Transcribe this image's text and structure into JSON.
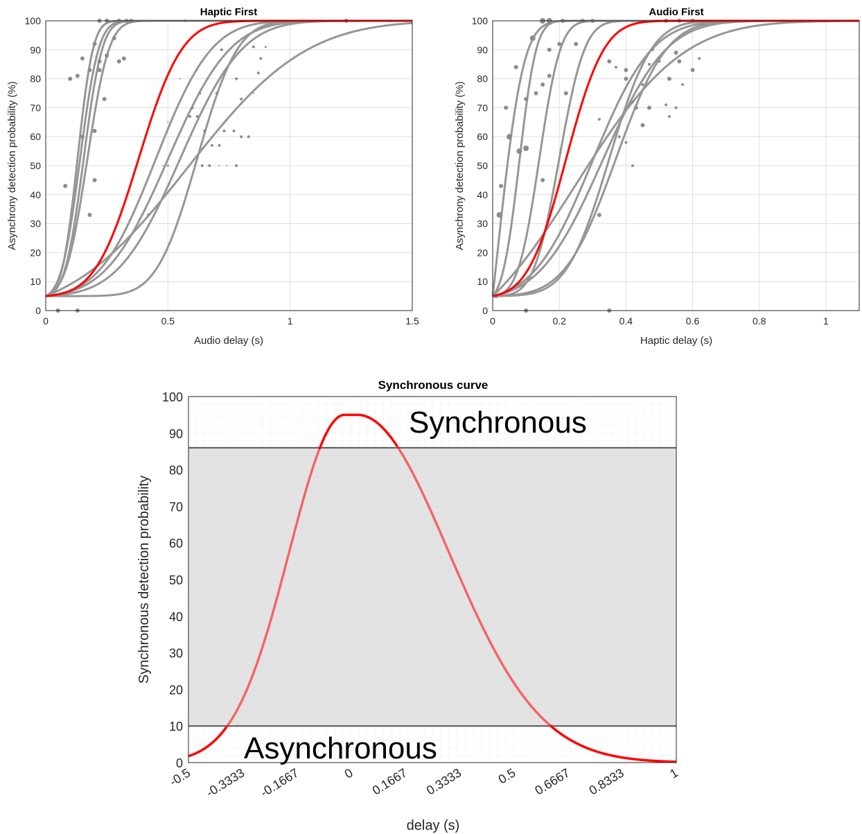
{
  "chart_data": [
    {
      "type": "scatter",
      "title": "Haptic First",
      "xlabel": "Audio delay (s)",
      "ylabel": "Asynchrony detection probability (%)",
      "xlim": [
        0,
        1.5
      ],
      "ylim": [
        0,
        100
      ],
      "xticks": [
        "0",
        "0.5",
        "1",
        "1.5"
      ],
      "yticks": [
        "0",
        "10",
        "20",
        "30",
        "40",
        "50",
        "60",
        "70",
        "80",
        "90",
        "100"
      ],
      "grid": true,
      "curve_color": "#969696",
      "fit_color": "#ff0000",
      "point_color": "#8c8c8c",
      "floor": 5,
      "curves": [
        {
          "mu": 0.13,
          "sigma": 0.05
        },
        {
          "mu": 0.14,
          "sigma": 0.06
        },
        {
          "mu": 0.155,
          "sigma": 0.06
        },
        {
          "mu": 0.17,
          "sigma": 0.07
        },
        {
          "mu": 0.45,
          "sigma": 0.18
        },
        {
          "mu": 0.5,
          "sigma": 0.2
        },
        {
          "mu": 0.55,
          "sigma": 0.2
        },
        {
          "mu": 0.62,
          "sigma": 0.13
        },
        {
          "mu": 0.58,
          "sigma": 0.38
        }
      ],
      "fit_curve": {
        "mu": 0.38,
        "sigma": 0.14
      },
      "points": [
        [
          0.05,
          0,
          3
        ],
        [
          0.13,
          0,
          3
        ],
        [
          0.08,
          43,
          3
        ],
        [
          0.1,
          80,
          3
        ],
        [
          0.13,
          81,
          3
        ],
        [
          0.15,
          60,
          3
        ],
        [
          0.15,
          87,
          3
        ],
        [
          0.18,
          83,
          3
        ],
        [
          0.2,
          92,
          3
        ],
        [
          0.22,
          86,
          3
        ],
        [
          0.22,
          83,
          3
        ],
        [
          0.24,
          73,
          3
        ],
        [
          0.25,
          88,
          3
        ],
        [
          0.28,
          94,
          3
        ],
        [
          0.3,
          86,
          3
        ],
        [
          0.32,
          87,
          3
        ],
        [
          0.2,
          62,
          3
        ],
        [
          0.2,
          45,
          3
        ],
        [
          0.18,
          33,
          3
        ],
        [
          0.22,
          100,
          3
        ],
        [
          0.25,
          100,
          3
        ],
        [
          0.3,
          100,
          3
        ],
        [
          0.33,
          100,
          3
        ],
        [
          0.35,
          100,
          3
        ],
        [
          0.57,
          100,
          2
        ],
        [
          1.23,
          100,
          3
        ],
        [
          0.72,
          90,
          2
        ],
        [
          0.78,
          80,
          2
        ],
        [
          0.8,
          73,
          2
        ],
        [
          0.85,
          91,
          2
        ],
        [
          0.87,
          82,
          2
        ],
        [
          0.88,
          87,
          2
        ],
        [
          0.9,
          91,
          1.5
        ],
        [
          0.63,
          75,
          2
        ],
        [
          0.6,
          70,
          2
        ],
        [
          0.62,
          67,
          2
        ],
        [
          0.7,
          75,
          2
        ],
        [
          0.73,
          62,
          2
        ],
        [
          0.77,
          62,
          2
        ],
        [
          0.8,
          60,
          2
        ],
        [
          0.83,
          60,
          2
        ],
        [
          0.68,
          57,
          2
        ],
        [
          0.71,
          57,
          2
        ],
        [
          0.64,
          50,
          2
        ],
        [
          0.67,
          50,
          2
        ],
        [
          0.78,
          50,
          2
        ],
        [
          0.5,
          50,
          1.5
        ],
        [
          0.48,
          50,
          1
        ],
        [
          0.42,
          33,
          2
        ],
        [
          0.59,
          67,
          2
        ],
        [
          0.65,
          62,
          2
        ],
        [
          0.55,
          80,
          1
        ],
        [
          0.62,
          83,
          1
        ],
        [
          0.71,
          50,
          1
        ],
        [
          0.74,
          50,
          1
        ],
        [
          0.5,
          65,
          1
        ],
        [
          0.85,
          75,
          1
        ]
      ]
    },
    {
      "type": "scatter",
      "title": "Audio First",
      "xlabel": "Haptic delay (s)",
      "ylabel": "Asynchrony detection probability (%)",
      "xlim": [
        0,
        1.1
      ],
      "ylim": [
        0,
        100
      ],
      "xticks": [
        "0",
        "0.2",
        "0.4",
        "0.6",
        "0.8",
        "1"
      ],
      "yticks": [
        "0",
        "10",
        "20",
        "30",
        "40",
        "50",
        "60",
        "70",
        "80",
        "90",
        "100"
      ],
      "grid": true,
      "curve_color": "#969696",
      "fit_color": "#ff0000",
      "point_color": "#8c8c8c",
      "floor": 5,
      "curves": [
        {
          "mu": 0.015,
          "sigma": 0.06
        },
        {
          "mu": 0.08,
          "sigma": 0.04
        },
        {
          "mu": 0.14,
          "sigma": 0.05
        },
        {
          "mu": 0.2,
          "sigma": 0.06
        },
        {
          "mu": 0.3,
          "sigma": 0.14
        },
        {
          "mu": 0.33,
          "sigma": 0.15
        },
        {
          "mu": 0.35,
          "sigma": 0.1
        },
        {
          "mu": 0.37,
          "sigma": 0.12
        },
        {
          "mu": 0.25,
          "sigma": 0.25
        }
      ],
      "fit_curve": {
        "mu": 0.22,
        "sigma": 0.09
      },
      "points": [
        [
          0.01,
          5,
          3
        ],
        [
          0.02,
          33,
          4
        ],
        [
          0.025,
          43,
          3
        ],
        [
          0.04,
          70,
          3
        ],
        [
          0.05,
          60,
          4
        ],
        [
          0.07,
          84,
          3
        ],
        [
          0.08,
          55,
          4
        ],
        [
          0.1,
          56,
          4
        ],
        [
          0.1,
          73,
          3
        ],
        [
          0.1,
          0,
          3
        ],
        [
          0.12,
          94,
          4
        ],
        [
          0.13,
          75,
          3
        ],
        [
          0.15,
          78,
          3
        ],
        [
          0.15,
          45,
          3
        ],
        [
          0.17,
          81,
          3
        ],
        [
          0.17,
          90,
          3
        ],
        [
          0.2,
          92,
          3
        ],
        [
          0.21,
          100,
          3
        ],
        [
          0.22,
          75,
          3
        ],
        [
          0.25,
          92,
          3
        ],
        [
          0.15,
          100,
          4
        ],
        [
          0.17,
          100,
          4
        ],
        [
          0.27,
          100,
          3
        ],
        [
          0.3,
          100,
          3
        ],
        [
          0.32,
          33,
          3
        ],
        [
          0.35,
          86,
          3
        ],
        [
          0.35,
          0,
          3
        ],
        [
          0.37,
          84,
          2
        ],
        [
          0.4,
          80,
          3
        ],
        [
          0.42,
          72,
          2
        ],
        [
          0.43,
          70,
          3
        ],
        [
          0.42,
          50,
          2
        ],
        [
          0.45,
          64,
          3
        ],
        [
          0.45,
          78,
          2
        ],
        [
          0.47,
          70,
          3
        ],
        [
          0.47,
          85,
          2
        ],
        [
          0.5,
          86,
          2
        ],
        [
          0.52,
          71,
          2
        ],
        [
          0.53,
          80,
          3
        ],
        [
          0.53,
          67,
          2
        ],
        [
          0.55,
          89,
          3
        ],
        [
          0.55,
          70,
          2
        ],
        [
          0.56,
          86,
          3
        ],
        [
          0.57,
          78,
          2
        ],
        [
          0.6,
          83,
          3
        ],
        [
          0.62,
          87,
          2
        ],
        [
          0.52,
          100,
          3
        ],
        [
          0.56,
          100,
          3
        ],
        [
          0.6,
          100,
          3
        ],
        [
          0.4,
          58,
          2
        ],
        [
          0.38,
          60,
          2
        ],
        [
          0.32,
          66,
          2
        ],
        [
          0.4,
          83,
          3
        ],
        [
          0.48,
          90,
          2
        ]
      ]
    },
    {
      "type": "line",
      "title": "Synchronous curve",
      "xlabel": "delay (s)",
      "ylabel": "Synchronous detection probability",
      "xlim": [
        -0.5,
        1
      ],
      "ylim": [
        0,
        100
      ],
      "xticks": [
        "-0.5",
        "-0.3333",
        "-0.1667",
        "0",
        "0.1667",
        "0.3333",
        "0.5",
        "0.6667",
        "0.8333",
        "1"
      ],
      "yticks": [
        "0",
        "10",
        "20",
        "30",
        "40",
        "50",
        "60",
        "70",
        "80",
        "90",
        "100"
      ],
      "upper_threshold": 86,
      "lower_threshold": 10,
      "region_upper_label": "Synchronous",
      "region_lower_label": "Asynchronous",
      "curve_color": "#ff0000",
      "band_color": "#e3e3e3",
      "peak": 95,
      "peak_flat_halfwidth": 0.02,
      "sigma_left": 0.17,
      "sigma_right": 0.28
    }
  ]
}
